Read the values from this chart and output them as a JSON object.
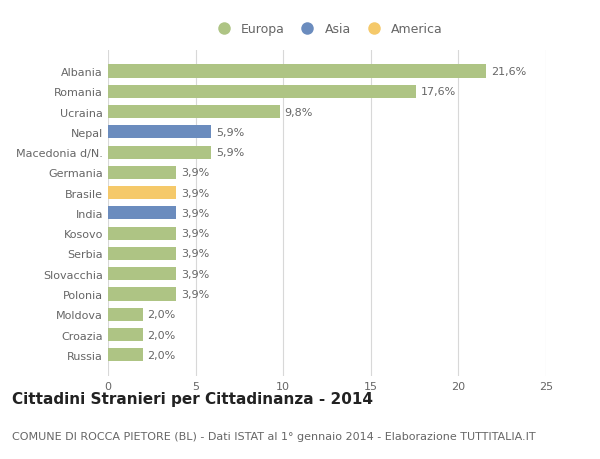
{
  "categories": [
    "Albania",
    "Romania",
    "Ucraina",
    "Nepal",
    "Macedonia d/N.",
    "Germania",
    "Brasile",
    "India",
    "Kosovo",
    "Serbia",
    "Slovacchia",
    "Polonia",
    "Moldova",
    "Croazia",
    "Russia"
  ],
  "values": [
    21.6,
    17.6,
    9.8,
    5.9,
    5.9,
    3.9,
    3.9,
    3.9,
    3.9,
    3.9,
    3.9,
    3.9,
    2.0,
    2.0,
    2.0
  ],
  "labels": [
    "21,6%",
    "17,6%",
    "9,8%",
    "5,9%",
    "5,9%",
    "3,9%",
    "3,9%",
    "3,9%",
    "3,9%",
    "3,9%",
    "3,9%",
    "3,9%",
    "2,0%",
    "2,0%",
    "2,0%"
  ],
  "continents": [
    "Europa",
    "Europa",
    "Europa",
    "Asia",
    "Europa",
    "Europa",
    "America",
    "Asia",
    "Europa",
    "Europa",
    "Europa",
    "Europa",
    "Europa",
    "Europa",
    "Europa"
  ],
  "colors": {
    "Europa": "#aec484",
    "Asia": "#6b8cbe",
    "America": "#f5c96a"
  },
  "title": "Cittadini Stranieri per Cittadinanza - 2014",
  "subtitle": "COMUNE DI ROCCA PIETORE (BL) - Dati ISTAT al 1° gennaio 2014 - Elaborazione TUTTITALIA.IT",
  "xlim": [
    0,
    25
  ],
  "xticks": [
    0,
    5,
    10,
    15,
    20,
    25
  ],
  "legend_labels": [
    "Europa",
    "Asia",
    "America"
  ],
  "bg_color": "#ffffff",
  "grid_color": "#d8d8d8",
  "bar_height": 0.65,
  "title_fontsize": 11,
  "subtitle_fontsize": 8,
  "label_fontsize": 8,
  "tick_fontsize": 8,
  "legend_fontsize": 9,
  "label_color": "#666666",
  "tick_color": "#666666"
}
